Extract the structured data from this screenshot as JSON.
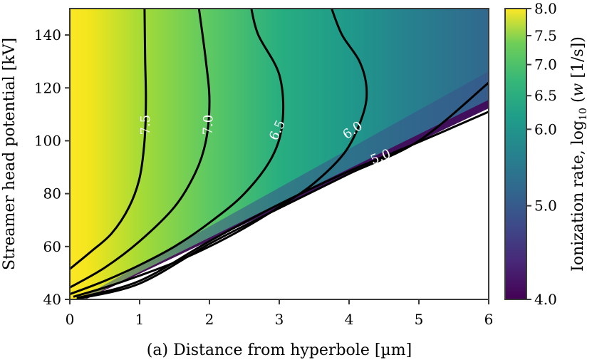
{
  "chart_data": {
    "type": "heatmap",
    "xlabel": "(a) Distance from hyperbole [µm]",
    "ylabel": "Streamer head potential [kV]",
    "xlim": [
      0,
      6
    ],
    "ylim": [
      40,
      150
    ],
    "xticks": [
      "0",
      "1",
      "2",
      "3",
      "4",
      "5",
      "6"
    ],
    "yticks": [
      "40",
      "60",
      "80",
      "100",
      "120",
      "140"
    ],
    "colorbar": {
      "label": "Ionization rate, log10 (w [1/s])",
      "label_prefix": "Ionization rate, log",
      "label_sub": "10",
      "label_mid": " (",
      "label_var": "w",
      "label_suffix": " [1/s])",
      "range": [
        4.0,
        8.0
      ],
      "ticks": [
        "4.0",
        "5.0",
        "6.0",
        "6.5",
        "7.0",
        "7.5",
        "8.0"
      ],
      "colormap": "viridis"
    },
    "grid": false,
    "contours": [
      {
        "level": "7.5",
        "points": [
          [
            0.0,
            51.5
          ],
          [
            0.3,
            58
          ],
          [
            0.6,
            65
          ],
          [
            0.85,
            75
          ],
          [
            1.0,
            86
          ],
          [
            1.07,
            100
          ],
          [
            1.09,
            115
          ],
          [
            1.08,
            130
          ],
          [
            1.07,
            150
          ]
        ]
      },
      {
        "level": "7.0",
        "points": [
          [
            0.0,
            44.5
          ],
          [
            0.5,
            52
          ],
          [
            1.0,
            62
          ],
          [
            1.5,
            75
          ],
          [
            1.8,
            88
          ],
          [
            1.95,
            100
          ],
          [
            2.0,
            115
          ],
          [
            1.95,
            130
          ],
          [
            1.85,
            150
          ]
        ]
      },
      {
        "level": "6.5",
        "points": [
          [
            0.0,
            42
          ],
          [
            0.5,
            47
          ],
          [
            1.0,
            53
          ],
          [
            1.5,
            60
          ],
          [
            2.0,
            69
          ],
          [
            2.5,
            80
          ],
          [
            2.9,
            94
          ],
          [
            3.05,
            108
          ],
          [
            3.0,
            125
          ],
          [
            2.7,
            140
          ],
          [
            2.6,
            150
          ]
        ]
      },
      {
        "level": "6.0",
        "points": [
          [
            0.05,
            41
          ],
          [
            0.5,
            44.5
          ],
          [
            1.0,
            49
          ],
          [
            1.5,
            54
          ],
          [
            2.0,
            60
          ],
          [
            2.5,
            67
          ],
          [
            3.0,
            75
          ],
          [
            3.5,
            84
          ],
          [
            3.95,
            96
          ],
          [
            4.2,
            110
          ],
          [
            4.25,
            120
          ],
          [
            4.15,
            130
          ],
          [
            3.9,
            140
          ],
          [
            3.75,
            150
          ]
        ]
      },
      {
        "level": "5.0",
        "points": [
          [
            0.1,
            40.5
          ],
          [
            1.0,
            47
          ],
          [
            2.0,
            62
          ],
          [
            3.0,
            76
          ],
          [
            4.0,
            88.5
          ],
          [
            5.0,
            99.5
          ],
          [
            6.0,
            111
          ]
        ]
      },
      {
        "level": "",
        "points": [
          [
            0.1,
            40.2
          ],
          [
            1.0,
            46
          ],
          [
            2.0,
            61
          ],
          [
            3.0,
            74.5
          ],
          [
            4.0,
            87.5
          ],
          [
            5.0,
            100
          ],
          [
            6.0,
            122
          ]
        ]
      }
    ],
    "contour_labels": [
      {
        "text": "7.5",
        "x": 1.08,
        "y": 106,
        "rotation": -90
      },
      {
        "text": "7.0",
        "x": 1.98,
        "y": 106,
        "rotation": -88
      },
      {
        "text": "6.5",
        "x": 2.97,
        "y": 104,
        "rotation": -65
      },
      {
        "text": "6.0",
        "x": 4.05,
        "y": 104,
        "rotation": -35
      },
      {
        "text": "5.0",
        "x": 4.45,
        "y": 94,
        "rotation": -22
      }
    ]
  }
}
